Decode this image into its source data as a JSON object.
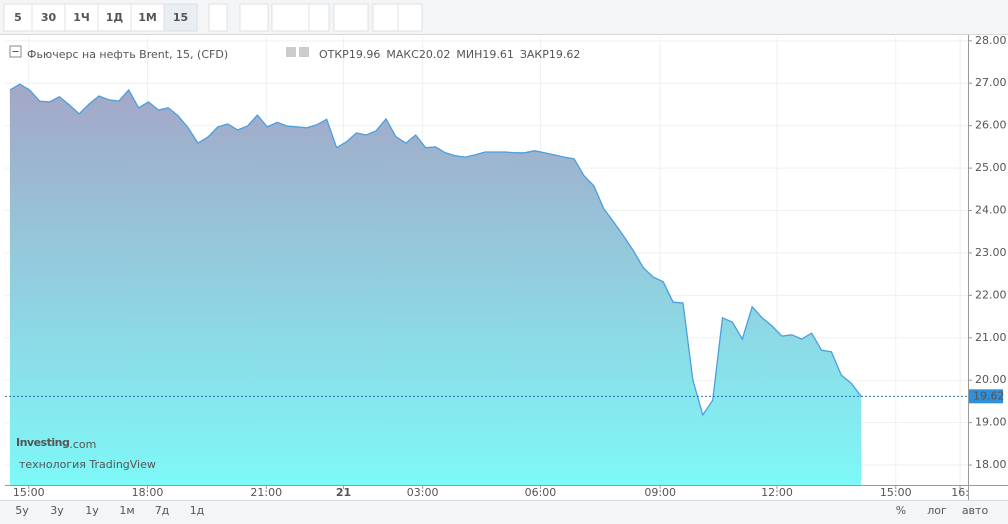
{
  "chart_data": {
    "type": "area",
    "title": "Фьючерс на нефть Brent, 15, (CFD)",
    "ohlc": [
      {
        "label": "ОТКР",
        "value": 19.96
      },
      {
        "label": "МАКС",
        "value": 20.02
      },
      {
        "label": "МИН",
        "value": 19.61
      },
      {
        "label": "ЗАКР",
        "value": 19.62
      }
    ],
    "values": [
      26.84,
      26.98,
      26.84,
      26.58,
      26.56,
      26.68,
      26.49,
      26.28,
      26.51,
      26.7,
      26.61,
      26.58,
      26.84,
      26.42,
      26.56,
      26.37,
      26.42,
      26.23,
      25.95,
      25.59,
      25.73,
      25.97,
      26.04,
      25.9,
      25.99,
      26.25,
      25.97,
      26.08,
      25.99,
      25.97,
      25.95,
      26.02,
      26.15,
      25.48,
      25.62,
      25.83,
      25.78,
      25.88,
      26.16,
      25.74,
      25.59,
      25.78,
      25.48,
      25.5,
      25.36,
      25.29,
      25.26,
      25.31,
      25.38,
      25.38,
      25.38,
      25.36,
      25.36,
      25.41,
      25.36,
      25.31,
      25.26,
      25.22,
      24.82,
      24.58,
      24.04,
      23.73,
      23.4,
      23.05,
      22.65,
      22.43,
      22.32,
      21.84,
      21.82,
      20.0,
      19.18,
      19.53,
      21.47,
      21.37,
      20.97,
      21.73,
      21.47,
      21.28,
      21.04,
      21.07,
      20.97,
      21.11,
      20.71,
      20.67,
      20.12,
      19.93,
      19.62
    ],
    "color": "#4a9fe0",
    "last_price": 19.62,
    "xlim": [
      -0.5,
      96.8
    ],
    "xticks": [
      {
        "value": 1.9,
        "label": "15:00"
      },
      {
        "value": 13.9,
        "label": "18:00"
      },
      {
        "value": 25.9,
        "label": "21:00"
      },
      {
        "value": 33.7,
        "label": "21"
      },
      {
        "value": 41.7,
        "label": "03:00"
      },
      {
        "value": 53.6,
        "label": "06:00"
      },
      {
        "value": 65.7,
        "label": "09:00"
      },
      {
        "value": 77.5,
        "label": "12:00"
      },
      {
        "value": 89.5,
        "label": "15:00"
      },
      {
        "value": 96,
        "label": "16:"
      }
    ],
    "ylim": [
      17.53,
      28.09
    ],
    "yticks": [
      {
        "value": 18,
        "label": "18.00"
      },
      {
        "value": 19,
        "label": "19.00"
      },
      {
        "value": 20,
        "label": "20.00"
      },
      {
        "value": 21,
        "label": "21.00"
      },
      {
        "value": 22,
        "label": "22.00"
      },
      {
        "value": 23,
        "label": "23.00"
      },
      {
        "value": 24,
        "label": "24.00"
      },
      {
        "value": 25,
        "label": "25.00"
      },
      {
        "value": 26,
        "label": "26.00"
      },
      {
        "value": 27,
        "label": "27.00"
      },
      {
        "value": 28,
        "label": "28.00"
      }
    ],
    "grid": true,
    "watermark": {
      "brand": "Investing",
      "suffix": ".com",
      "tagline": "технология TradingView"
    },
    "toolbar": {
      "intervals": [
        "5",
        "30",
        "1Ч",
        "1Д",
        "1М",
        "15"
      ],
      "active": "15"
    },
    "ranges": [
      "5у",
      "3у",
      "1у",
      "1м",
      "7д",
      "1д"
    ],
    "options": [
      "%",
      "лог",
      "авто"
    ]
  }
}
